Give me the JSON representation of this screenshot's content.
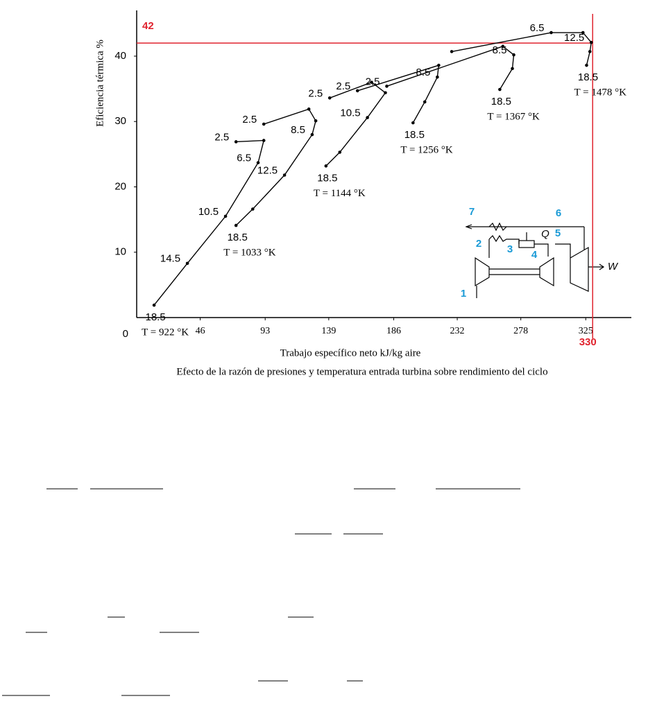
{
  "chart_data": {
    "type": "line",
    "title": "Efecto de la razón de presiones y temperatura entrada turbina sobre rendimiento del ciclo",
    "x_label": "Trabajo específico neto  kJ/kg aire",
    "y_label": "Eficiencia térmica %",
    "xlim": [
      0,
      358
    ],
    "ylim": [
      0,
      47
    ],
    "xticks": [
      0,
      46,
      93,
      139,
      186,
      232,
      278,
      325
    ],
    "yticks": [
      10,
      20,
      30,
      40
    ],
    "reference": {
      "x": 330,
      "y": 42,
      "color": "#e0232e"
    },
    "series": [
      {
        "name": "T = 922 °K",
        "color": "#000000",
        "x": [
          12.6,
          36.7,
          64.3,
          87.9,
          92,
          71.9
        ],
        "values": [
          1.9,
          8.3,
          15.5,
          23.7,
          27.1,
          26.9
        ],
        "labels": [
          18.5,
          14.5,
          10.5,
          6.5,
          null,
          2.5
        ]
      },
      {
        "name": "T = 1033 °K",
        "color": "#000000",
        "x": [
          71.9,
          84,
          107,
          127,
          129.6,
          124.6,
          92
        ],
        "values": [
          14.1,
          16.6,
          21.8,
          28,
          30.1,
          31.9,
          29.6
        ],
        "labels": [
          18.5,
          null,
          12.5,
          8.5,
          null,
          null,
          2.5
        ]
      },
      {
        "name": "T = 1144 °K",
        "color": "#000000",
        "x": [
          137,
          147,
          167,
          180,
          170,
          139.7
        ],
        "values": [
          23.2,
          25.3,
          30.6,
          34.4,
          36,
          33.6
        ],
        "labels": [
          18.5,
          null,
          10.5,
          null,
          null,
          2.5
        ]
      },
      {
        "name": "T = 1256 °K",
        "color": "#000000",
        "x": [
          200,
          208.5,
          217.6,
          218.6,
          159.8
        ],
        "values": [
          29.8,
          33,
          36.8,
          38.6,
          34.7
        ],
        "labels": [
          18.5,
          null,
          8.5,
          null,
          2.5
        ]
      },
      {
        "name": "T = 1367 °K",
        "color": "#000000",
        "x": [
          262.8,
          271.9,
          272.9,
          265,
          181
        ],
        "values": [
          34.9,
          38.1,
          40.2,
          41.5,
          35.4
        ],
        "labels": [
          18.5,
          null,
          8.5,
          null,
          2.5
        ]
      },
      {
        "name": "T = 1478 °K",
        "color": "#000000",
        "x": [
          325.6,
          328,
          329,
          323,
          300,
          228
        ],
        "values": [
          38.6,
          40.7,
          42.1,
          43.6,
          43.6,
          40.7
        ],
        "labels": [
          18.5,
          null,
          12.5,
          null,
          6.5,
          null
        ]
      }
    ],
    "diagram": {
      "labels": [
        "7",
        "6",
        "2",
        "3",
        "4",
        "5",
        "1",
        "Q",
        "W"
      ],
      "color": "#1a9ad6"
    }
  }
}
